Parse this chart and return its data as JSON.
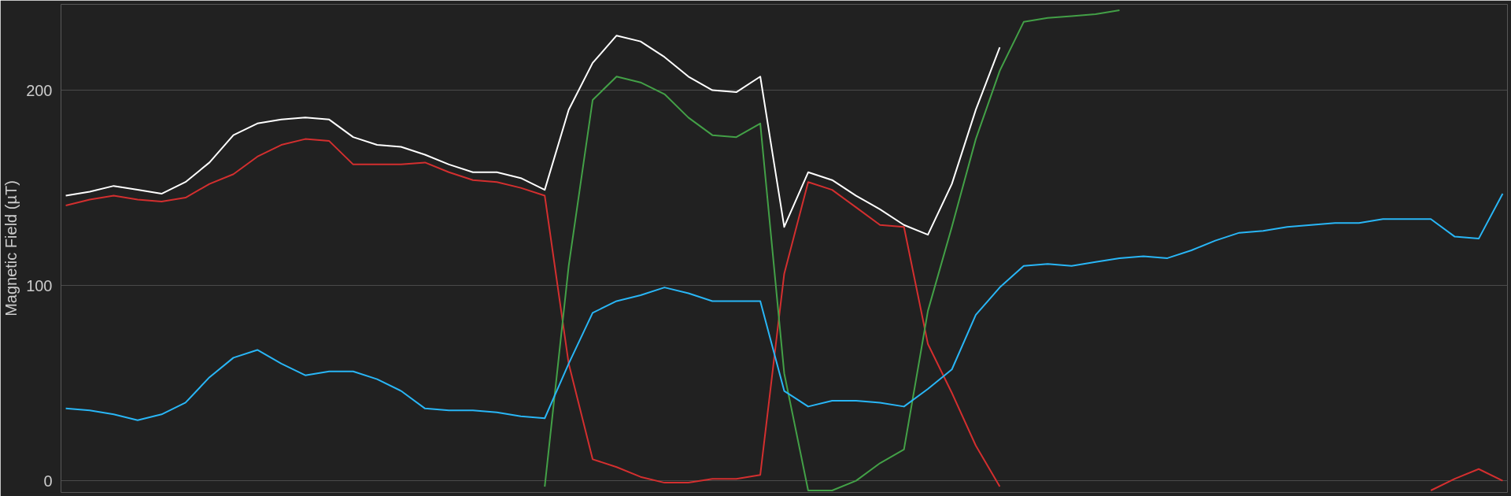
{
  "chart_data": {
    "type": "line",
    "ylabel": "Magnetic Field (µT)",
    "ylim": [
      -6,
      244
    ],
    "yticks": [
      0,
      100,
      200
    ],
    "tick_labels": "y",
    "grid": "y",
    "categories": [
      null,
      null,
      null,
      null,
      null,
      null,
      null,
      null,
      null,
      null,
      null,
      null,
      null,
      null,
      null,
      null,
      null,
      null,
      null,
      null,
      null,
      null,
      null,
      null,
      null,
      null,
      null,
      null,
      null,
      null,
      null,
      null,
      null,
      null,
      null,
      null,
      null,
      null,
      null,
      null,
      null,
      null,
      null,
      null,
      null,
      null,
      null,
      null,
      null,
      null,
      null,
      null,
      null,
      null,
      null,
      null,
      null,
      null,
      null,
      null,
      null
    ],
    "series": [
      {
        "color": "#ffffff",
        "values": [
          146,
          148,
          151,
          149,
          147,
          153,
          163,
          177,
          183,
          185,
          186,
          185,
          176,
          172,
          171,
          167,
          162,
          158,
          158,
          155,
          149,
          190,
          214,
          228,
          225,
          217,
          207,
          200,
          199,
          207,
          130,
          158,
          154,
          146,
          139,
          131,
          126,
          152,
          190,
          222,
          null,
          null,
          null,
          null,
          null,
          null,
          null,
          null,
          null,
          null,
          null,
          null,
          null,
          null,
          null,
          null,
          null,
          null,
          null,
          null,
          null
        ]
      },
      {
        "color": "#d32f2f",
        "values": [
          141,
          144,
          146,
          144,
          143,
          145,
          152,
          157,
          166,
          172,
          175,
          174,
          162,
          162,
          162,
          163,
          158,
          154,
          153,
          150,
          146,
          60,
          11,
          7,
          2,
          -1,
          -1,
          1,
          1,
          3,
          106,
          153,
          149,
          140,
          131,
          130,
          70,
          45,
          18,
          -3,
          null,
          null,
          null,
          null,
          null,
          null,
          null,
          null,
          null,
          null,
          null,
          null,
          null,
          null,
          null,
          null,
          null,
          -5,
          1,
          6,
          0
        ]
      },
      {
        "color": "#43a047",
        "values": [
          null,
          null,
          null,
          null,
          null,
          null,
          null,
          null,
          null,
          null,
          null,
          null,
          null,
          null,
          null,
          null,
          null,
          null,
          null,
          null,
          -3,
          110,
          195,
          207,
          204,
          198,
          186,
          177,
          176,
          183,
          55,
          -5,
          -5,
          0,
          9,
          16,
          87,
          130,
          175,
          210,
          235,
          237,
          238,
          239,
          241,
          null,
          null,
          null,
          null,
          null,
          null,
          null,
          null,
          null,
          null,
          null,
          null,
          null,
          null,
          null,
          null
        ]
      },
      {
        "color": "#29b6f6",
        "values": [
          37,
          36,
          34,
          31,
          34,
          40,
          53,
          63,
          67,
          60,
          54,
          56,
          56,
          52,
          46,
          37,
          36,
          36,
          35,
          33,
          32,
          60,
          86,
          92,
          95,
          99,
          96,
          92,
          92,
          92,
          46,
          38,
          41,
          41,
          40,
          38,
          47,
          57,
          85,
          99,
          110,
          111,
          110,
          112,
          114,
          115,
          114,
          118,
          123,
          127,
          128,
          130,
          131,
          132,
          132,
          134,
          134,
          134,
          125,
          124,
          147
        ]
      }
    ]
  }
}
